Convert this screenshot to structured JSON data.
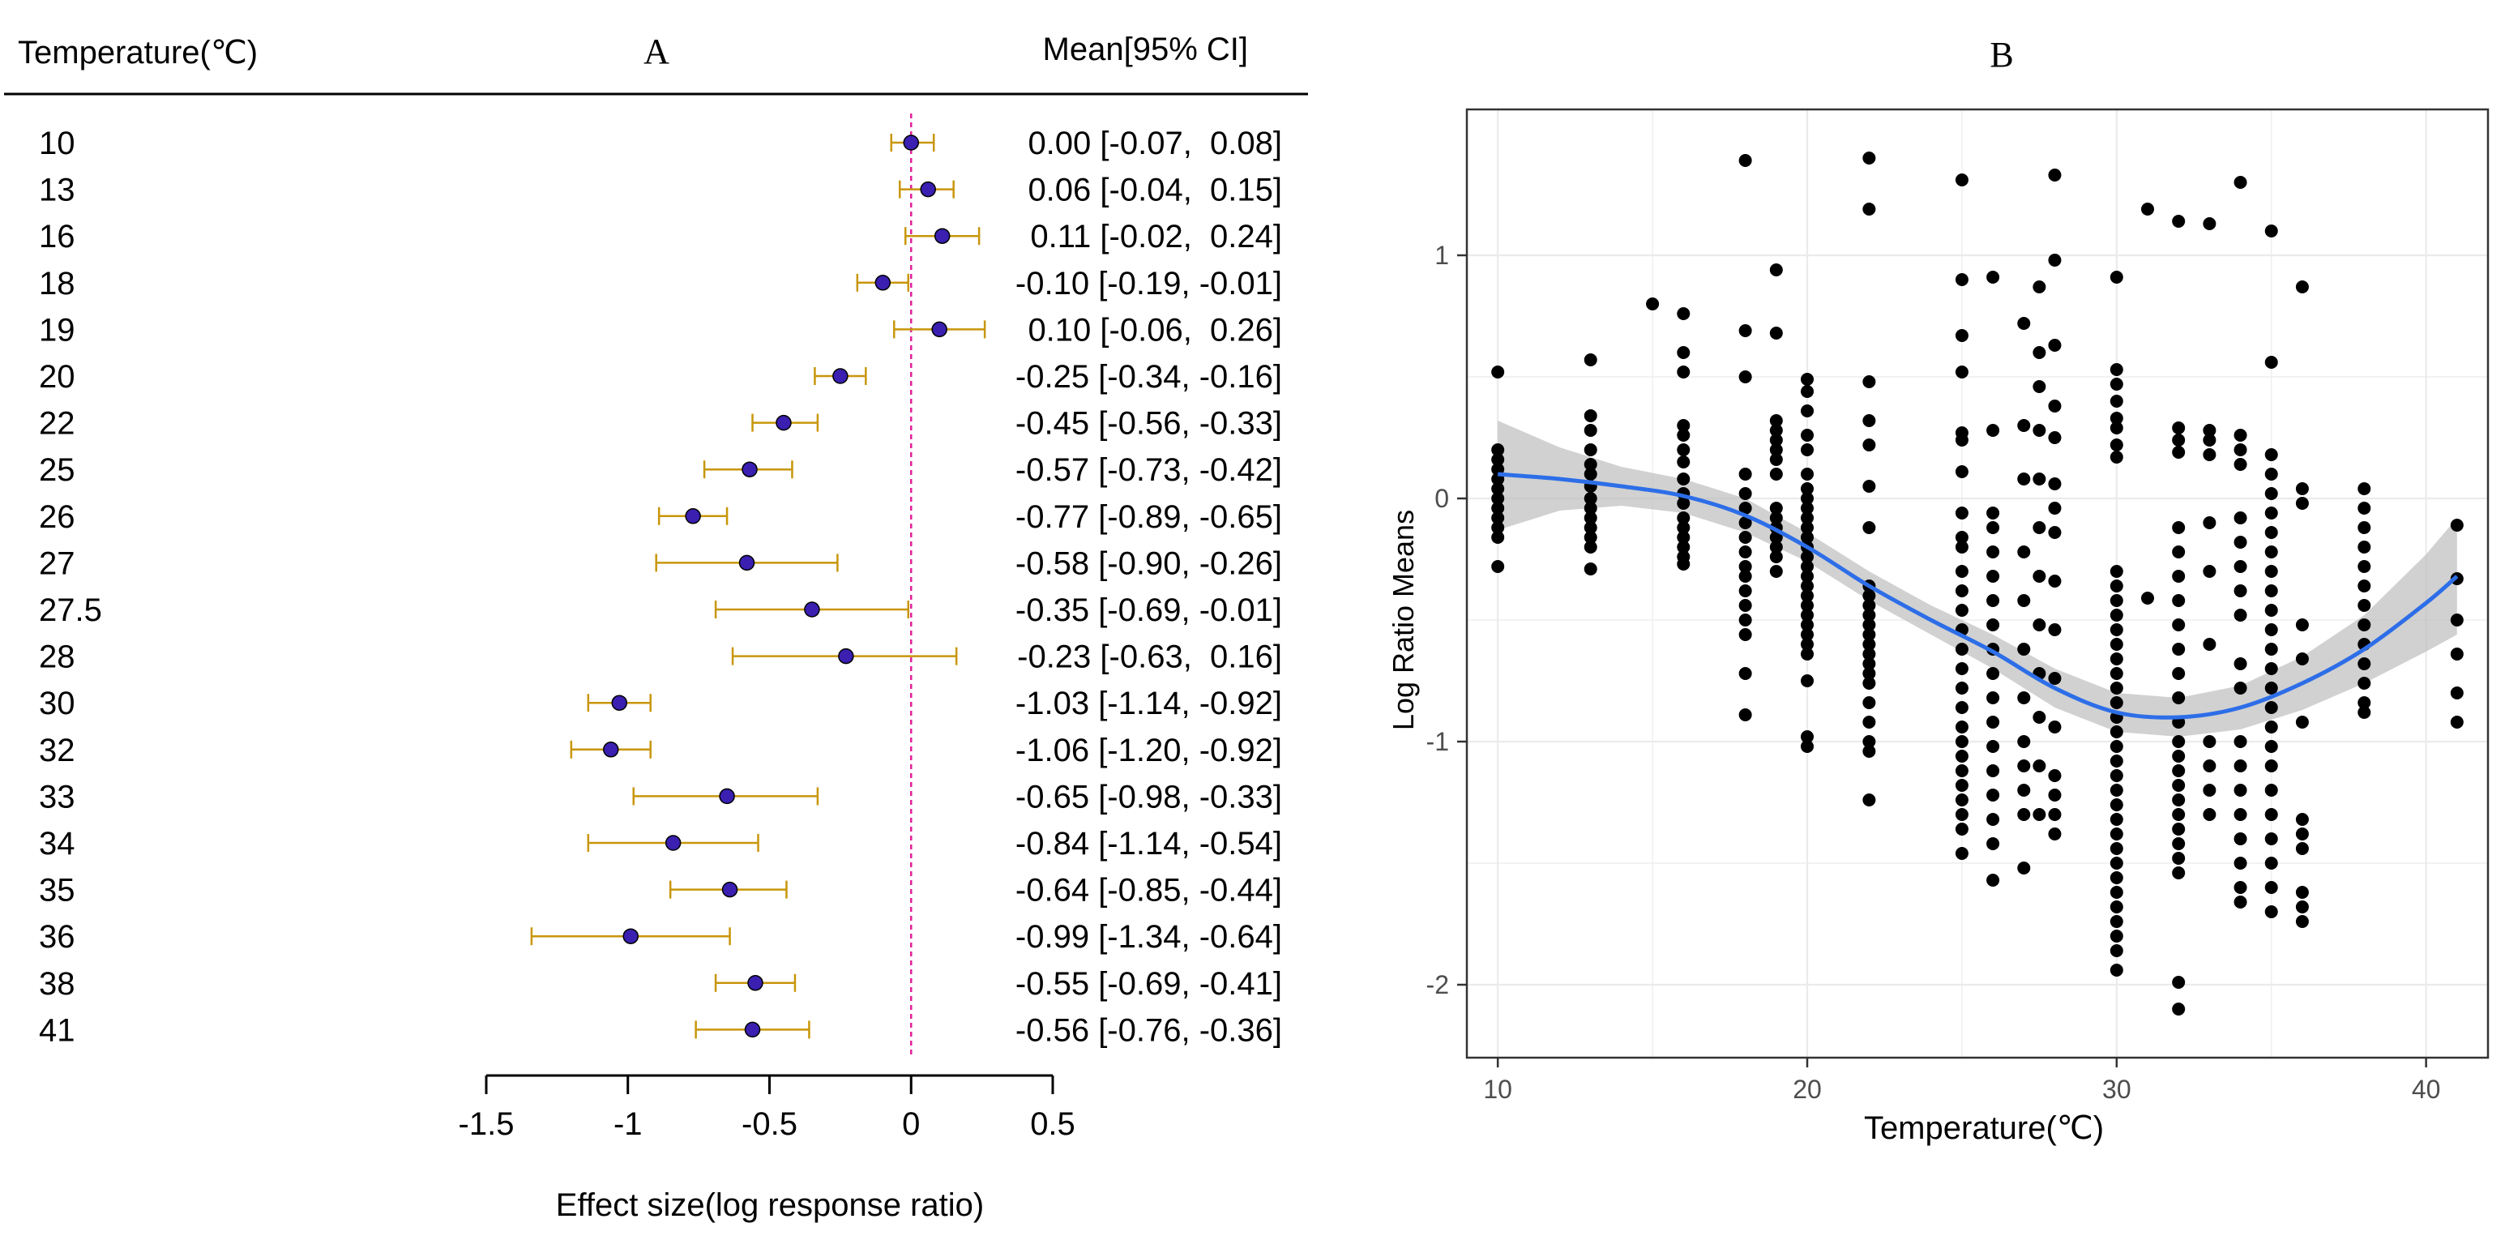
{
  "chart_data": [
    {
      "type": "forest",
      "panel_label": "A",
      "header_left": "Temperature(℃)",
      "header_right": "Mean[95% CI]",
      "xlabel": "Effect size(log response ratio)",
      "xlim": [
        -1.5,
        0.5
      ],
      "xticks": [
        -1.5,
        -1,
        -0.5,
        0,
        0.5
      ],
      "xtick_labels": [
        "-1.5",
        "-1",
        "-0.5",
        "0",
        "0.5"
      ],
      "reference_line": 0,
      "rows": [
        {
          "label": "10",
          "mean": 0.0,
          "lo": -0.07,
          "hi": 0.08,
          "text": "0.00 [-0.07,  0.08]"
        },
        {
          "label": "13",
          "mean": 0.06,
          "lo": -0.04,
          "hi": 0.15,
          "text": "0.06 [-0.04,  0.15]"
        },
        {
          "label": "16",
          "mean": 0.11,
          "lo": -0.02,
          "hi": 0.24,
          "text": "0.11 [-0.02,  0.24]"
        },
        {
          "label": "18",
          "mean": -0.1,
          "lo": -0.19,
          "hi": -0.01,
          "text": "-0.10 [-0.19, -0.01]"
        },
        {
          "label": "19",
          "mean": 0.1,
          "lo": -0.06,
          "hi": 0.26,
          "text": "0.10 [-0.06,  0.26]"
        },
        {
          "label": "20",
          "mean": -0.25,
          "lo": -0.34,
          "hi": -0.16,
          "text": "-0.25 [-0.34, -0.16]"
        },
        {
          "label": "22",
          "mean": -0.45,
          "lo": -0.56,
          "hi": -0.33,
          "text": "-0.45 [-0.56, -0.33]"
        },
        {
          "label": "25",
          "mean": -0.57,
          "lo": -0.73,
          "hi": -0.42,
          "text": "-0.57 [-0.73, -0.42]"
        },
        {
          "label": "26",
          "mean": -0.77,
          "lo": -0.89,
          "hi": -0.65,
          "text": "-0.77 [-0.89, -0.65]"
        },
        {
          "label": "27",
          "mean": -0.58,
          "lo": -0.9,
          "hi": -0.26,
          "text": "-0.58 [-0.90, -0.26]"
        },
        {
          "label": "27.5",
          "mean": -0.35,
          "lo": -0.69,
          "hi": -0.01,
          "text": "-0.35 [-0.69, -0.01]"
        },
        {
          "label": "28",
          "mean": -0.23,
          "lo": -0.63,
          "hi": 0.16,
          "text": "-0.23 [-0.63,  0.16]"
        },
        {
          "label": "30",
          "mean": -1.03,
          "lo": -1.14,
          "hi": -0.92,
          "text": "-1.03 [-1.14, -0.92]"
        },
        {
          "label": "32",
          "mean": -1.06,
          "lo": -1.2,
          "hi": -0.92,
          "text": "-1.06 [-1.20, -0.92]"
        },
        {
          "label": "33",
          "mean": -0.65,
          "lo": -0.98,
          "hi": -0.33,
          "text": "-0.65 [-0.98, -0.33]"
        },
        {
          "label": "34",
          "mean": -0.84,
          "lo": -1.14,
          "hi": -0.54,
          "text": "-0.84 [-1.14, -0.54]"
        },
        {
          "label": "35",
          "mean": -0.64,
          "lo": -0.85,
          "hi": -0.44,
          "text": "-0.64 [-0.85, -0.44]"
        },
        {
          "label": "36",
          "mean": -0.99,
          "lo": -1.34,
          "hi": -0.64,
          "text": "-0.99 [-1.34, -0.64]"
        },
        {
          "label": "38",
          "mean": -0.55,
          "lo": -0.69,
          "hi": -0.41,
          "text": "-0.55 [-0.69, -0.41]"
        },
        {
          "label": "41",
          "mean": -0.56,
          "lo": -0.76,
          "hi": -0.36,
          "text": "-0.56 [-0.76, -0.36]"
        }
      ],
      "colors": {
        "point": "#3a1fb0",
        "whisker": "#c8960a",
        "reference": "#e0209a"
      }
    },
    {
      "type": "scatter",
      "panel_label": "B",
      "xlabel": "Temperature(℃)",
      "ylabel": "Log Ratio Means",
      "xlim": [
        9,
        42
      ],
      "ylim": [
        -2.3,
        1.6
      ],
      "xticks": [
        10,
        20,
        30,
        40
      ],
      "xtick_labels": [
        "10",
        "20",
        "30",
        "40"
      ],
      "yticks": [
        1,
        0,
        -1,
        -2
      ],
      "ytick_labels": [
        "1",
        "0",
        "-1",
        "-2"
      ],
      "grid": true,
      "point_groups": [
        {
          "x": 10,
          "y": [
            0.52,
            0.2,
            0.16,
            0.12,
            0.08,
            0.04,
            0.0,
            -0.04,
            -0.08,
            -0.12,
            -0.16,
            -0.28
          ]
        },
        {
          "x": 13,
          "y": [
            0.57,
            0.34,
            0.28,
            0.2,
            0.14,
            0.1,
            0.05,
            0.0,
            -0.04,
            -0.08,
            -0.12,
            -0.16,
            -0.2,
            -0.29
          ]
        },
        {
          "x": 15,
          "y": [
            0.8
          ]
        },
        {
          "x": 16,
          "y": [
            0.76,
            0.6,
            0.52,
            0.3,
            0.26,
            0.2,
            0.15,
            0.08,
            0.02,
            -0.02,
            -0.08,
            -0.12,
            -0.16,
            -0.2,
            -0.24,
            -0.27
          ]
        },
        {
          "x": 18,
          "y": [
            1.39,
            0.69,
            0.5,
            0.1,
            0.02,
            -0.04,
            -0.1,
            -0.16,
            -0.22,
            -0.28,
            -0.32,
            -0.38,
            -0.44,
            -0.5,
            -0.56,
            -0.72,
            -0.89
          ]
        },
        {
          "x": 19,
          "y": [
            0.94,
            0.68,
            0.32,
            0.28,
            0.24,
            0.2,
            0.16,
            0.1,
            -0.04,
            -0.08,
            -0.12,
            -0.16,
            -0.2,
            -0.24,
            -0.3
          ]
        },
        {
          "x": 20,
          "y": [
            0.49,
            0.44,
            0.36,
            0.26,
            0.2,
            0.1,
            0.04,
            0.0,
            -0.04,
            -0.08,
            -0.12,
            -0.16,
            -0.2,
            -0.24,
            -0.28,
            -0.32,
            -0.36,
            -0.4,
            -0.44,
            -0.48,
            -0.52,
            -0.56,
            -0.6,
            -0.64,
            -0.75,
            -0.98,
            -1.02
          ]
        },
        {
          "x": 22,
          "y": [
            1.4,
            1.19,
            0.48,
            0.32,
            0.22,
            0.05,
            -0.12,
            -0.36,
            -0.4,
            -0.44,
            -0.48,
            -0.52,
            -0.56,
            -0.6,
            -0.64,
            -0.68,
            -0.72,
            -0.76,
            -0.84,
            -0.92,
            -1.0,
            -1.04,
            -1.24
          ]
        },
        {
          "x": 25,
          "y": [
            1.31,
            0.9,
            0.67,
            0.52,
            0.27,
            0.24,
            0.11,
            -0.06,
            -0.16,
            -0.2,
            -0.3,
            -0.38,
            -0.46,
            -0.54,
            -0.62,
            -0.7,
            -0.78,
            -0.86,
            -0.94,
            -1.0,
            -1.06,
            -1.12,
            -1.18,
            -1.24,
            -1.3,
            -1.36,
            -1.46
          ]
        },
        {
          "x": 26,
          "y": [
            0.91,
            0.28,
            -0.06,
            -0.12,
            -0.22,
            -0.32,
            -0.42,
            -0.52,
            -0.62,
            -0.72,
            -0.82,
            -0.92,
            -1.02,
            -1.12,
            -1.22,
            -1.32,
            -1.42,
            -1.57
          ]
        },
        {
          "x": 27,
          "y": [
            0.72,
            0.3,
            0.08,
            -0.22,
            -0.42,
            -0.62,
            -0.82,
            -1.0,
            -1.1,
            -1.2,
            -1.3,
            -1.52
          ]
        },
        {
          "x": 27.5,
          "y": [
            0.87,
            0.6,
            0.46,
            0.28,
            0.08,
            -0.12,
            -0.32,
            -0.52,
            -0.72,
            -0.9,
            -1.1,
            -1.3
          ]
        },
        {
          "x": 28,
          "y": [
            1.33,
            0.98,
            0.63,
            0.38,
            0.25,
            0.06,
            -0.04,
            -0.14,
            -0.34,
            -0.54,
            -0.74,
            -0.94,
            -1.14,
            -1.22,
            -1.3,
            -1.38
          ]
        },
        {
          "x": 30,
          "y": [
            0.91,
            0.53,
            0.47,
            0.4,
            0.33,
            0.29,
            0.22,
            0.17,
            -0.3,
            -0.36,
            -0.42,
            -0.48,
            -0.54,
            -0.6,
            -0.66,
            -0.72,
            -0.78,
            -0.84,
            -0.9,
            -0.96,
            -1.02,
            -1.08,
            -1.14,
            -1.2,
            -1.26,
            -1.32,
            -1.38,
            -1.44,
            -1.5,
            -1.56,
            -1.62,
            -1.68,
            -1.74,
            -1.8,
            -1.86,
            -1.94
          ]
        },
        {
          "x": 31,
          "y": [
            1.19,
            -0.41
          ]
        },
        {
          "x": 32,
          "y": [
            1.14,
            0.29,
            0.24,
            0.19,
            -0.12,
            -0.22,
            -0.32,
            -0.42,
            -0.52,
            -0.62,
            -0.72,
            -0.82,
            -0.92,
            -1.0,
            -1.06,
            -1.12,
            -1.18,
            -1.24,
            -1.3,
            -1.36,
            -1.42,
            -1.48,
            -1.54,
            -1.99,
            -2.1
          ]
        },
        {
          "x": 33,
          "y": [
            1.13,
            0.28,
            0.24,
            0.18,
            -0.1,
            -0.3,
            -0.6,
            -1.0,
            -1.1,
            -1.2,
            -1.3
          ]
        },
        {
          "x": 34,
          "y": [
            1.3,
            0.26,
            0.2,
            0.14,
            -0.08,
            -0.18,
            -0.28,
            -0.38,
            -0.48,
            -0.68,
            -0.78,
            -1.0,
            -1.1,
            -1.2,
            -1.3,
            -1.4,
            -1.5,
            -1.6,
            -1.66
          ]
        },
        {
          "x": 35,
          "y": [
            1.1,
            0.56,
            0.18,
            0.1,
            0.02,
            -0.06,
            -0.14,
            -0.22,
            -0.3,
            -0.38,
            -0.46,
            -0.54,
            -0.62,
            -0.7,
            -0.78,
            -0.86,
            -0.94,
            -1.02,
            -1.1,
            -1.2,
            -1.3,
            -1.4,
            -1.5,
            -1.6,
            -1.7
          ]
        },
        {
          "x": 36,
          "y": [
            0.87,
            0.04,
            -0.02,
            -0.52,
            -0.66,
            -0.92,
            -1.32,
            -1.38,
            -1.44,
            -1.62,
            -1.68,
            -1.74
          ]
        },
        {
          "x": 38,
          "y": [
            0.04,
            -0.04,
            -0.12,
            -0.2,
            -0.28,
            -0.36,
            -0.44,
            -0.52,
            -0.6,
            -0.68,
            -0.76,
            -0.84,
            -0.88
          ]
        },
        {
          "x": 41,
          "y": [
            -0.11,
            -0.33,
            -0.5,
            -0.64,
            -0.8,
            -0.92
          ]
        }
      ],
      "smooth": {
        "x": [
          10,
          12,
          14,
          16,
          18,
          20,
          22,
          24,
          26,
          28,
          30,
          32,
          34,
          36,
          38,
          40,
          41
        ],
        "y": [
          0.1,
          0.08,
          0.05,
          0.01,
          -0.07,
          -0.2,
          -0.36,
          -0.5,
          -0.63,
          -0.78,
          -0.88,
          -0.9,
          -0.86,
          -0.76,
          -0.62,
          -0.43,
          -0.32
        ],
        "lo": [
          -0.13,
          -0.05,
          -0.03,
          -0.06,
          -0.14,
          -0.26,
          -0.42,
          -0.56,
          -0.7,
          -0.86,
          -0.96,
          -0.98,
          -0.95,
          -0.87,
          -0.76,
          -0.63,
          -0.56
        ],
        "hi": [
          0.32,
          0.21,
          0.13,
          0.08,
          0.0,
          -0.14,
          -0.3,
          -0.44,
          -0.56,
          -0.7,
          -0.8,
          -0.82,
          -0.77,
          -0.65,
          -0.48,
          -0.23,
          -0.08
        ]
      },
      "colors": {
        "point": "#000000",
        "smooth": "#2d6ee8",
        "band": "#bdbdbd",
        "grid": "#ebebeb",
        "frame": "#333333"
      }
    }
  ]
}
